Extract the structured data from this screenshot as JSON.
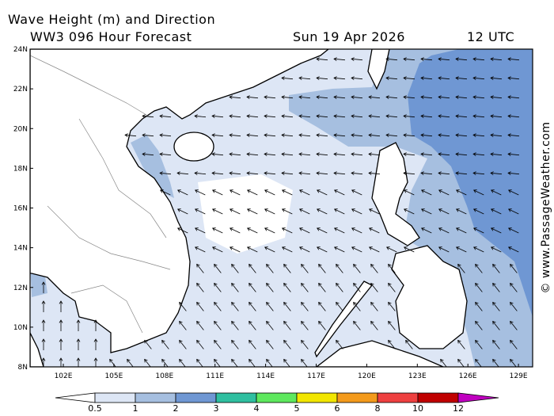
{
  "header": {
    "title": "Wave Height (m) and Direction",
    "model": "WW3 096 Hour Forecast",
    "date": "Sun 19 Apr 2026",
    "time": "12 UTC"
  },
  "map": {
    "lat_labels": [
      "24N",
      "22N",
      "20N",
      "18N",
      "16N",
      "14N",
      "12N",
      "10N",
      "8N"
    ],
    "lon_labels": [
      "102E",
      "105E",
      "108E",
      "111E",
      "114E",
      "117E",
      "120E",
      "123E",
      "126E",
      "129E"
    ]
  },
  "legend": {
    "levels": [
      0.5,
      1,
      2,
      3,
      4,
      5,
      6,
      8,
      10,
      12
    ],
    "colors": [
      "#ffffff",
      "#dde6f5",
      "#a6bfe0",
      "#6f97d3",
      "#2fbfa0",
      "#5ee85e",
      "#f2e600",
      "#f39a1b",
      "#ee4040",
      "#c00000",
      "#c000c0"
    ]
  },
  "watermark": "© www.PassageWeather.com"
}
